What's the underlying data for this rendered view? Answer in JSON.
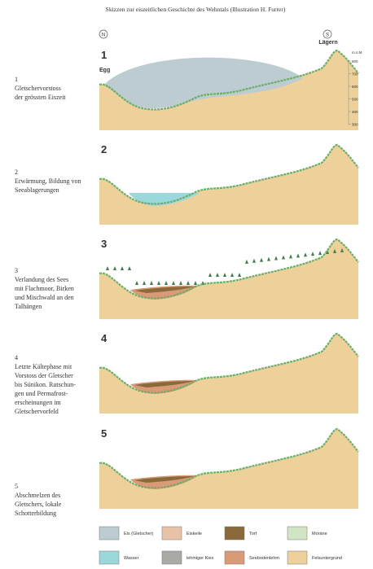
{
  "header": {
    "title": "Skizzen zur eiszeitlichen Geschichte des Wehntals (Illustration H. Furrer)",
    "north": "N",
    "south": "S",
    "left_place": "Egg",
    "right_place": "Lägern"
  },
  "elevation_scale": {
    "unit": "m.ü.M",
    "ticks": [
      "800",
      "700",
      "600",
      "500",
      "400",
      "300"
    ]
  },
  "panels": [
    {
      "number": "1",
      "description": [
        "1",
        "Gletschervorstoss",
        "der grössten Eiszeit"
      ]
    },
    {
      "number": "2",
      "description": [
        "2",
        "Erwärmung, Bildung von",
        "Seeablagerungen"
      ]
    },
    {
      "number": "3",
      "description": [
        "3",
        "Verlandung des Sees",
        "mit Flachmoor, Birken",
        "und Mischwald an den",
        "Talhängen"
      ]
    },
    {
      "number": "4",
      "description": [
        "4",
        "Letzte Kältephase mit",
        "Vorstoss der Gletscher",
        "bis Sünikon. Rutschun-",
        "gen und Permafrost-",
        "erscheinungen im",
        "Gletschervorfeld"
      ]
    },
    {
      "number": "5",
      "description": [
        "5",
        "Abschmelzen des",
        "Gletschers, lokale",
        "Schotterbildung"
      ]
    }
  ],
  "legend": [
    {
      "label": "Eis (Gletscher)"
    },
    {
      "label": "Eiskeile"
    },
    {
      "label": "Torf"
    },
    {
      "label": "Moräne"
    },
    {
      "label": "Wasser"
    },
    {
      "label": "lehmiger Kies"
    },
    {
      "label": "Seebodenlehm"
    },
    {
      "label": "Felsuntergrund"
    }
  ]
}
